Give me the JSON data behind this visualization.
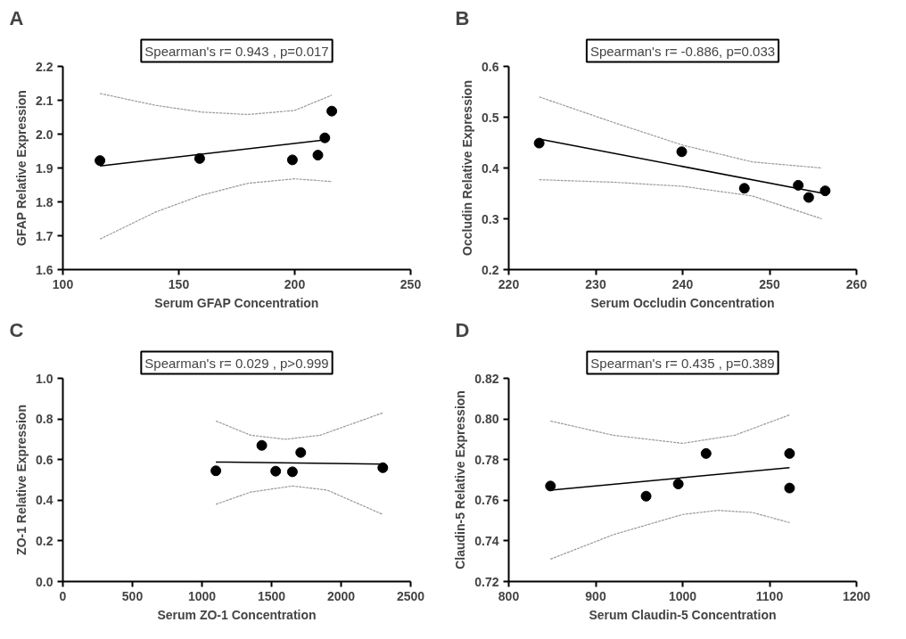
{
  "chart_data": [
    {
      "type": "scatter",
      "title": "A",
      "annotations": [
        "Spearman's r= 0.943 , p=0.017"
      ],
      "xlabel": "Serum GFAP Concentration",
      "ylabel": "GFAP Relative Expression",
      "xlim": [
        100,
        250
      ],
      "xticks": [
        100,
        150,
        200,
        250
      ],
      "ylim": [
        1.6,
        2.2
      ],
      "yticks": [
        {
          "value": 1.6,
          "label": "1.6"
        },
        {
          "value": 1.7,
          "label": "1.7"
        },
        {
          "value": 1.8,
          "label": "1.8"
        },
        {
          "value": 1.9,
          "label": "1.9"
        },
        {
          "value": 2.0,
          "label": "2.0"
        },
        {
          "value": 2.1,
          "label": "2.1"
        },
        {
          "value": 2.2,
          "label": "2.2"
        }
      ],
      "grid": false,
      "series": [
        {
          "marker": "circle",
          "color": "#000000",
          "x": [
            116,
            159,
            199,
            210,
            213,
            216
          ],
          "values": [
            1.922,
            1.928,
            1.924,
            1.938,
            1.989,
            2.068
          ]
        },
        {
          "type": "line",
          "color": "#000000",
          "line_style": "solid",
          "x": [
            116,
            213
          ],
          "values": [
            1.906,
            1.983
          ]
        },
        {
          "type": "line",
          "color": "#999999",
          "line_style": "dotted",
          "x": [
            116,
            140,
            160,
            180,
            200,
            216
          ],
          "values": [
            2.12,
            2.085,
            2.065,
            2.058,
            2.07,
            2.115
          ]
        },
        {
          "type": "line",
          "color": "#999999",
          "line_style": "dotted",
          "x": [
            116,
            140,
            160,
            180,
            200,
            216
          ],
          "values": [
            1.69,
            1.77,
            1.82,
            1.855,
            1.868,
            1.86
          ]
        }
      ]
    },
    {
      "type": "scatter",
      "title": "B",
      "annotations": [
        "Spearman's r= -0.886, p=0.033"
      ],
      "xlabel": "Serum Occludin Concentration",
      "ylabel": "Occludin Relative Expression",
      "xlim": [
        220,
        260
      ],
      "xticks": [
        220,
        230,
        240,
        250,
        260
      ],
      "ylim": [
        0.2,
        0.6
      ],
      "yticks": [
        0.2,
        0.3,
        0.4,
        0.5,
        0.6
      ],
      "grid": false,
      "series": [
        {
          "marker": "circle",
          "color": "#000000",
          "x": [
            223.5,
            239.9,
            247.1,
            253.3,
            254.5,
            256.4
          ],
          "values": [
            0.449,
            0.432,
            0.36,
            0.366,
            0.342,
            0.355
          ]
        },
        {
          "type": "line",
          "color": "#000000",
          "line_style": "solid",
          "x": [
            223.5,
            256.2
          ],
          "values": [
            0.457,
            0.35
          ]
        },
        {
          "type": "line",
          "color": "#999999",
          "line_style": "dotted",
          "x": [
            223.5,
            232,
            240,
            248,
            256
          ],
          "values": [
            0.54,
            0.49,
            0.445,
            0.412,
            0.4
          ]
        },
        {
          "type": "line",
          "color": "#999999",
          "line_style": "dotted",
          "x": [
            223.5,
            232,
            240,
            248,
            256
          ],
          "values": [
            0.377,
            0.372,
            0.364,
            0.345,
            0.3
          ]
        }
      ]
    },
    {
      "type": "scatter",
      "title": "C",
      "annotations": [
        "Spearman's r= 0.029 , p>0.999"
      ],
      "xlabel": "Serum ZO-1 Concentration",
      "ylabel": "ZO-1 Relative Expression",
      "xlim": [
        0,
        2500
      ],
      "xticks": [
        0,
        500,
        1000,
        1500,
        2000,
        2500
      ],
      "ylim": [
        0,
        1
      ],
      "yticks": [
        {
          "value": 0,
          "label": "0.0"
        },
        {
          "value": 0.2,
          "label": "0.2"
        },
        {
          "value": 0.4,
          "label": "0.4"
        },
        {
          "value": 0.6,
          "label": "0.6"
        },
        {
          "value": 0.8,
          "label": "0.8"
        },
        {
          "value": 1,
          "label": "1.0"
        }
      ],
      "grid": false,
      "series": [
        {
          "marker": "circle",
          "color": "#000000",
          "x": [
            1100,
            1430,
            1530,
            1650,
            1710,
            2300
          ],
          "values": [
            0.545,
            0.67,
            0.543,
            0.54,
            0.635,
            0.56
          ]
        },
        {
          "type": "line",
          "color": "#000000",
          "line_style": "solid",
          "x": [
            1100,
            2300
          ],
          "values": [
            0.588,
            0.578
          ]
        },
        {
          "type": "line",
          "color": "#999999",
          "line_style": "dotted",
          "x": [
            1100,
            1350,
            1600,
            1850,
            2300
          ],
          "values": [
            0.79,
            0.72,
            0.7,
            0.72,
            0.83
          ]
        },
        {
          "type": "line",
          "color": "#999999",
          "line_style": "dotted",
          "x": [
            1100,
            1350,
            1650,
            1900,
            2300
          ],
          "values": [
            0.38,
            0.44,
            0.47,
            0.45,
            0.33
          ]
        }
      ]
    },
    {
      "type": "scatter",
      "title": "D",
      "annotations": [
        "Spearman's r= 0.435 , p=0.389"
      ],
      "xlabel": "Serum Claudin-5 Concentration",
      "ylabel": "Claudin-5 Relative Expression",
      "xlim": [
        800,
        1200
      ],
      "xticks": [
        800,
        900,
        1000,
        1100,
        1200
      ],
      "ylim": [
        0.72,
        0.82
      ],
      "yticks": [
        {
          "value": 0.72,
          "label": "0.72"
        },
        {
          "value": 0.74,
          "label": "0.74"
        },
        {
          "value": 0.76,
          "label": "0.76"
        },
        {
          "value": 0.78,
          "label": "0.78"
        },
        {
          "value": 0.8,
          "label": "0.80"
        },
        {
          "value": 0.82,
          "label": "0.82"
        }
      ],
      "grid": false,
      "series": [
        {
          "marker": "circle",
          "color": "#000000",
          "x": [
            848,
            958,
            995,
            1027,
            1123,
            1123
          ],
          "values": [
            0.767,
            0.762,
            0.768,
            0.783,
            0.783,
            0.766
          ]
        },
        {
          "type": "line",
          "color": "#000000",
          "line_style": "solid",
          "x": [
            848,
            1123
          ],
          "values": [
            0.765,
            0.776
          ]
        },
        {
          "type": "line",
          "color": "#999999",
          "line_style": "dotted",
          "x": [
            848,
            920,
            1000,
            1060,
            1123
          ],
          "values": [
            0.799,
            0.792,
            0.788,
            0.792,
            0.802
          ]
        },
        {
          "type": "line",
          "color": "#999999",
          "line_style": "dotted",
          "x": [
            848,
            920,
            1000,
            1040,
            1080,
            1123
          ],
          "values": [
            0.731,
            0.743,
            0.753,
            0.755,
            0.754,
            0.749
          ]
        }
      ]
    }
  ]
}
